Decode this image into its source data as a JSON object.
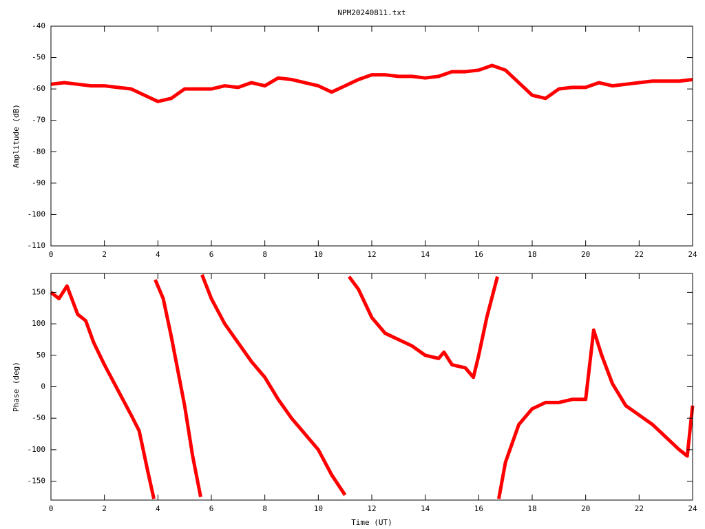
{
  "chart_data": [
    {
      "type": "line",
      "title": "NPM20240811.txt",
      "ylabel": "Amplitude (dB)",
      "x": [
        0,
        0.5,
        1,
        1.5,
        2,
        2.5,
        3,
        3.5,
        4,
        4.5,
        5,
        5.5,
        6,
        6.5,
        7,
        7.5,
        8,
        8.5,
        9,
        9.5,
        10,
        10.5,
        11,
        11.5,
        12,
        12.5,
        13,
        13.5,
        14,
        14.5,
        15,
        15.5,
        16,
        16.5,
        17,
        17.5,
        18,
        18.5,
        19,
        19.5,
        20,
        20.5,
        21,
        21.5,
        22,
        22.5,
        23,
        23.5,
        24
      ],
      "series": [
        {
          "color": "#ff0000",
          "values": [
            -58.5,
            -58,
            -58.5,
            -59,
            -59,
            -59.5,
            -60,
            -62,
            -64,
            -63,
            -60,
            -60,
            -60,
            -59,
            -59.5,
            -58,
            -59,
            -56.5,
            -57,
            -58,
            -59,
            -61,
            -59,
            -57,
            -55.5,
            -55.5,
            -56,
            -56,
            -56.5,
            -56,
            -54.5,
            -54.5,
            -54,
            -52.5,
            -54,
            -58,
            -62,
            -63,
            -60,
            -59.5,
            -59.5,
            -58,
            -59,
            -58.5,
            -58,
            -57.5,
            -57.5,
            -57.5,
            -57
          ]
        }
      ],
      "xlim": [
        0,
        24
      ],
      "xticks": [
        0,
        2,
        4,
        6,
        8,
        10,
        12,
        14,
        16,
        18,
        20,
        22,
        24
      ],
      "ylim": [
        -110,
        -40
      ],
      "yticks": [
        -110,
        -100,
        -90,
        -80,
        -70,
        -60,
        -50,
        -40
      ]
    },
    {
      "type": "line",
      "xlabel": "Time (UT)",
      "ylabel": "Phase (deg)",
      "x": [
        0,
        0.3,
        0.6,
        1.0,
        1.3,
        1.6,
        2,
        2.5,
        3,
        3.3,
        3.6,
        3.85,
        3.87,
        3.9,
        4.2,
        4.5,
        5.0,
        5.3,
        5.6,
        5.62,
        5.65,
        6,
        6.5,
        7,
        7.5,
        8,
        8.5,
        9,
        9.5,
        10,
        10.5,
        11,
        11.1,
        11.15,
        11.5,
        12,
        12.5,
        13,
        13.5,
        14,
        14.5,
        14.7,
        15,
        15.5,
        15.8,
        16,
        16.3,
        16.7,
        16.72,
        16.75,
        17,
        17.5,
        18,
        18.5,
        19,
        19.5,
        20,
        20.3,
        20.6,
        21,
        21.5,
        22,
        22.5,
        23,
        23.5,
        23.8,
        24
      ],
      "series": [
        {
          "color": "#ff0000",
          "values": [
            150,
            140,
            160,
            115,
            105,
            70,
            35,
            -5,
            -45,
            -70,
            -130,
            -178,
            null,
            170,
            140,
            80,
            -30,
            -110,
            -175,
            null,
            178,
            140,
            100,
            70,
            40,
            15,
            -20,
            -50,
            -75,
            -100,
            -140,
            -172,
            null,
            175,
            155,
            110,
            85,
            75,
            65,
            50,
            45,
            55,
            35,
            30,
            15,
            50,
            110,
            175,
            null,
            -178,
            -120,
            -60,
            -35,
            -25,
            -25,
            -20,
            -20,
            90,
            50,
            5,
            -30,
            -45,
            -60,
            -80,
            -100,
            -110,
            -30
          ]
        }
      ],
      "xlim": [
        0,
        24
      ],
      "xticks": [
        0,
        2,
        4,
        6,
        8,
        10,
        12,
        14,
        16,
        18,
        20,
        22,
        24
      ],
      "ylim": [
        -180,
        180
      ],
      "yticks": [
        -150,
        -100,
        -50,
        0,
        50,
        100,
        150
      ]
    }
  ]
}
